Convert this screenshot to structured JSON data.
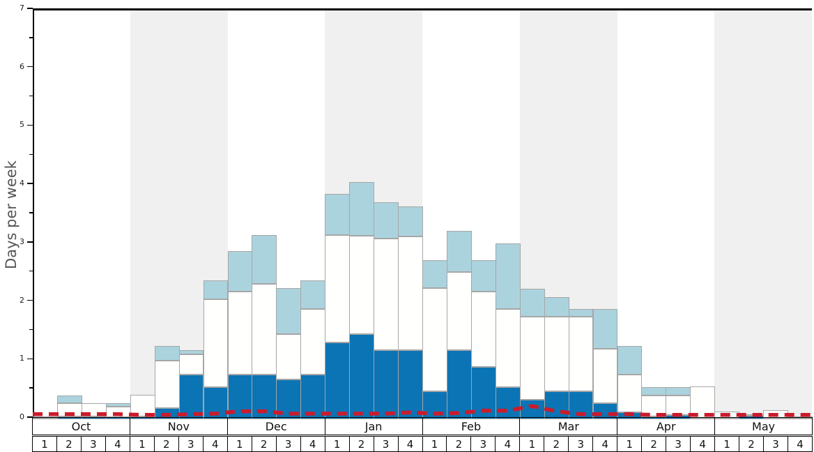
{
  "ylabel": "Days per week",
  "colors": {
    "dark_blue": "#0b74b5",
    "light_blue": "#abd3de",
    "bar_white": "#fffffe",
    "bar_edge": "#a6a6a6",
    "month_band_gray": "#f0f0f0",
    "red_line": "#cc1b2b",
    "axis_black": "#000000",
    "ylabel_gray": "#555555"
  },
  "chart_data": {
    "type": "bar",
    "title": "",
    "xlabel": "",
    "ylabel": "Days per week",
    "ylim": [
      0,
      7
    ],
    "yticks": [
      0,
      1,
      2,
      3,
      4,
      5,
      6,
      7
    ],
    "minor_ticks_every": 0.5,
    "grid": false,
    "legend": "none",
    "categories_months": [
      "Oct",
      "Nov",
      "Dec",
      "Jan",
      "Feb",
      "Mar",
      "Apr",
      "May"
    ],
    "weeks_per_month": [
      "1",
      "2",
      "3",
      "4"
    ],
    "shaded_months": [
      "Nov",
      "Jan",
      "Mar",
      "May"
    ],
    "stacking_note": "stacked bars: dark blue bottom (0..dark), white middle (dark..mid), light blue top (mid..total); red dashed line overlaid",
    "series": [
      {
        "name": "dark-blue-bottom",
        "values": [
          0.02,
          0.05,
          0.05,
          0.04,
          0.05,
          0.19,
          0.76,
          0.55,
          0.76,
          0.76,
          0.68,
          0.76,
          1.31,
          1.46,
          1.18,
          1.18,
          0.48,
          1.18,
          0.9,
          0.55,
          0.33,
          0.48,
          0.48,
          0.27,
          0.12,
          0.05,
          0.07,
          0.02,
          0.02,
          0.06,
          0.02,
          0.02
        ]
      },
      {
        "name": "white-middle-top-boundary",
        "values": [
          0.05,
          0.27,
          0.27,
          0.22,
          0.42,
          1.0,
          1.11,
          2.05,
          2.19,
          2.32,
          1.46,
          1.89,
          3.15,
          3.14,
          3.09,
          3.13,
          2.25,
          2.52,
          2.19,
          1.89,
          1.76,
          1.76,
          1.76,
          1.21,
          0.76,
          0.41,
          0.41,
          0.56,
          0.13,
          0.08,
          0.15,
          0.05
        ]
      },
      {
        "name": "light-blue-total-top",
        "values": [
          0.05,
          0.41,
          0.27,
          0.28,
          0.42,
          1.26,
          1.18,
          2.38,
          2.88,
          3.16,
          2.25,
          2.38,
          3.86,
          4.06,
          3.72,
          3.64,
          2.73,
          3.22,
          2.73,
          3.01,
          2.23,
          2.09,
          1.89,
          1.89,
          1.26,
          0.55,
          0.55,
          0.56,
          0.13,
          0.08,
          0.15,
          0.05
        ]
      },
      {
        "name": "red-dashed-line",
        "values": [
          0.05,
          0.05,
          0.05,
          0.05,
          0.04,
          0.04,
          0.05,
          0.06,
          0.1,
          0.1,
          0.06,
          0.06,
          0.06,
          0.06,
          0.06,
          0.08,
          0.06,
          0.07,
          0.11,
          0.11,
          0.19,
          0.1,
          0.05,
          0.05,
          0.05,
          0.04,
          0.04,
          0.04,
          0.04,
          0.04,
          0.04,
          0.04
        ]
      }
    ]
  }
}
